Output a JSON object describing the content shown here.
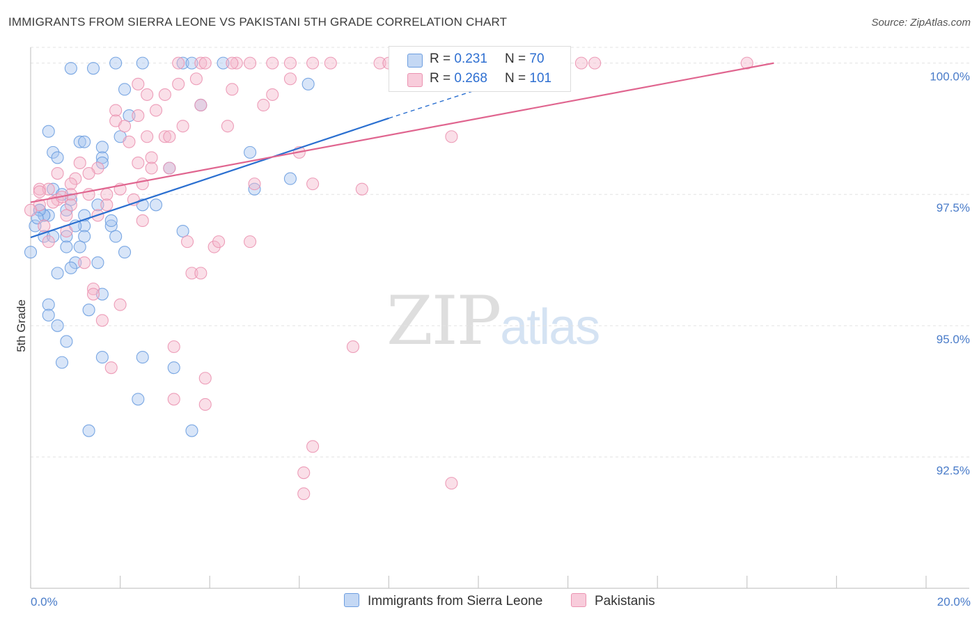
{
  "title": "IMMIGRANTS FROM SIERRA LEONE VS PAKISTANI 5TH GRADE CORRELATION CHART",
  "source": "Source: ZipAtlas.com",
  "watermark": {
    "zip": "ZIP",
    "atlas": "atlas"
  },
  "colors": {
    "blue_fill": "#a9c6ef",
    "blue_stroke": "#6d9ee0",
    "blue_line": "#2a6fd0",
    "pink_fill": "#f5b8cc",
    "pink_stroke": "#eb93b1",
    "pink_line": "#e0658f",
    "grid": "#e3e3e3",
    "tick_label": "#4a7cc9"
  },
  "legend": {
    "rows": [
      {
        "r_label": "R = ",
        "r_value": "0.231",
        "n_label": "N = ",
        "n_value": "70"
      },
      {
        "r_label": "R = ",
        "r_value": "0.268",
        "n_label": "N = ",
        "n_value": "101"
      }
    ]
  },
  "bottom_legend": [
    "Immigrants from Sierra Leone",
    "Pakistanis"
  ],
  "chart_data": {
    "type": "scatter",
    "title": "IMMIGRANTS FROM SIERRA LEONE VS PAKISTANI 5TH GRADE CORRELATION CHART",
    "xlabel": "",
    "ylabel": "5th Grade",
    "xlim": [
      0,
      20
    ],
    "ylim": [
      90.0,
      100.3
    ],
    "x_tick_labels": [
      "0.0%",
      "20.0%"
    ],
    "y_ticks": [
      92.5,
      95.0,
      97.5,
      100.0
    ],
    "y_tick_labels": [
      "92.5%",
      "95.0%",
      "97.5%",
      "100.0%"
    ],
    "grid": true,
    "legend_position": "top-center",
    "series": [
      {
        "name": "Immigrants from Sierra Leone",
        "color": "#a9c6ef",
        "r": 0.231,
        "n": 70,
        "trend": {
          "x0": 0.0,
          "y0": 96.68,
          "x1": 8.0,
          "y1": 98.95,
          "dash_to_x": 10.0,
          "dash_to_y": 99.5
        },
        "points": [
          [
            0.9,
            99.9
          ],
          [
            1.4,
            99.9
          ],
          [
            1.9,
            100.0
          ],
          [
            2.5,
            100.0
          ],
          [
            3.4,
            100.0
          ],
          [
            3.6,
            100.0
          ],
          [
            4.3,
            100.0
          ],
          [
            6.2,
            99.6
          ],
          [
            2.1,
            99.5
          ],
          [
            3.8,
            99.2
          ],
          [
            2.2,
            99.0
          ],
          [
            0.4,
            98.7
          ],
          [
            1.1,
            98.5
          ],
          [
            1.2,
            98.5
          ],
          [
            1.6,
            98.4
          ],
          [
            2.0,
            98.6
          ],
          [
            0.5,
            98.3
          ],
          [
            0.6,
            98.2
          ],
          [
            1.6,
            98.2
          ],
          [
            1.6,
            98.1
          ],
          [
            3.1,
            98.0
          ],
          [
            4.9,
            98.3
          ],
          [
            5.8,
            97.8
          ],
          [
            0.5,
            97.6
          ],
          [
            0.9,
            97.4
          ],
          [
            1.5,
            97.3
          ],
          [
            2.5,
            97.3
          ],
          [
            0.2,
            97.2
          ],
          [
            0.3,
            97.1
          ],
          [
            0.4,
            97.1
          ],
          [
            0.8,
            97.2
          ],
          [
            1.2,
            97.1
          ],
          [
            0.1,
            96.9
          ],
          [
            1.2,
            96.9
          ],
          [
            1.8,
            96.9
          ],
          [
            1.9,
            96.7
          ],
          [
            3.4,
            96.8
          ],
          [
            0.3,
            96.7
          ],
          [
            0.5,
            96.7
          ],
          [
            0.8,
            96.7
          ],
          [
            1.2,
            96.7
          ],
          [
            0.8,
            96.5
          ],
          [
            1.1,
            96.5
          ],
          [
            2.1,
            96.4
          ],
          [
            0.0,
            96.4
          ],
          [
            1.0,
            96.2
          ],
          [
            1.5,
            96.2
          ],
          [
            0.9,
            96.1
          ],
          [
            0.6,
            96.0
          ],
          [
            1.6,
            95.6
          ],
          [
            0.4,
            95.4
          ],
          [
            1.3,
            95.3
          ],
          [
            0.4,
            95.2
          ],
          [
            0.6,
            95.0
          ],
          [
            0.8,
            94.7
          ],
          [
            1.6,
            94.4
          ],
          [
            2.5,
            94.4
          ],
          [
            0.7,
            94.3
          ],
          [
            3.2,
            94.2
          ],
          [
            2.4,
            93.6
          ],
          [
            1.3,
            93.0
          ],
          [
            3.6,
            93.0
          ],
          [
            0.3,
            97.1
          ],
          [
            0.2,
            97.2
          ],
          [
            0.15,
            97.05
          ],
          [
            1.0,
            96.9
          ],
          [
            1.8,
            97.0
          ],
          [
            0.7,
            97.5
          ],
          [
            2.8,
            97.3
          ],
          [
            5.0,
            97.6
          ]
        ]
      },
      {
        "name": "Pakistanis",
        "color": "#f5b8cc",
        "r": 0.268,
        "n": 101,
        "trend": {
          "x0": 0.0,
          "y0": 97.35,
          "x1": 16.6,
          "y1": 100.0
        },
        "points": [
          [
            3.8,
            100.0
          ],
          [
            4.6,
            100.0
          ],
          [
            4.9,
            100.0
          ],
          [
            5.4,
            100.0
          ],
          [
            5.8,
            100.0
          ],
          [
            6.3,
            100.0
          ],
          [
            6.7,
            100.0
          ],
          [
            7.8,
            100.0
          ],
          [
            8.0,
            100.0
          ],
          [
            8.2,
            100.0
          ],
          [
            9.2,
            100.0
          ],
          [
            9.4,
            100.0
          ],
          [
            12.3,
            100.0
          ],
          [
            12.6,
            100.0
          ],
          [
            3.3,
            100.0
          ],
          [
            3.9,
            100.0
          ],
          [
            4.5,
            100.0
          ],
          [
            8.6,
            100.0
          ],
          [
            8.8,
            100.0
          ],
          [
            11.5,
            100.0
          ],
          [
            11.9,
            100.0
          ],
          [
            16.0,
            100.0
          ],
          [
            2.4,
            99.6
          ],
          [
            3.3,
            99.6
          ],
          [
            3.7,
            99.7
          ],
          [
            5.8,
            99.7
          ],
          [
            2.6,
            99.4
          ],
          [
            3.0,
            99.4
          ],
          [
            4.5,
            99.5
          ],
          [
            5.4,
            99.4
          ],
          [
            3.8,
            99.2
          ],
          [
            5.2,
            99.2
          ],
          [
            1.9,
            99.1
          ],
          [
            2.4,
            99.0
          ],
          [
            2.8,
            99.1
          ],
          [
            1.9,
            98.9
          ],
          [
            2.1,
            98.8
          ],
          [
            4.4,
            98.8
          ],
          [
            3.4,
            98.8
          ],
          [
            2.6,
            98.6
          ],
          [
            3.0,
            98.6
          ],
          [
            3.1,
            98.6
          ],
          [
            9.4,
            98.6
          ],
          [
            2.2,
            98.5
          ],
          [
            6.0,
            98.3
          ],
          [
            1.1,
            98.1
          ],
          [
            2.4,
            98.1
          ],
          [
            2.7,
            98.2
          ],
          [
            1.5,
            98.0
          ],
          [
            2.7,
            98.0
          ],
          [
            3.1,
            98.0
          ],
          [
            0.6,
            97.9
          ],
          [
            1.3,
            97.9
          ],
          [
            1.0,
            97.8
          ],
          [
            0.9,
            97.7
          ],
          [
            2.0,
            97.6
          ],
          [
            2.5,
            97.7
          ],
          [
            5.0,
            97.7
          ],
          [
            6.3,
            97.7
          ],
          [
            7.4,
            97.6
          ],
          [
            0.2,
            97.6
          ],
          [
            0.4,
            97.6
          ],
          [
            0.9,
            97.5
          ],
          [
            1.3,
            97.5
          ],
          [
            1.7,
            97.5
          ],
          [
            0.6,
            97.4
          ],
          [
            0.9,
            97.3
          ],
          [
            0.2,
            97.3
          ],
          [
            0.0,
            97.2
          ],
          [
            1.5,
            97.1
          ],
          [
            0.8,
            97.1
          ],
          [
            2.5,
            97.0
          ],
          [
            0.3,
            96.9
          ],
          [
            0.8,
            96.8
          ],
          [
            3.5,
            96.6
          ],
          [
            4.9,
            96.6
          ],
          [
            4.1,
            96.5
          ],
          [
            4.2,
            96.6
          ],
          [
            0.4,
            96.6
          ],
          [
            1.2,
            96.2
          ],
          [
            3.6,
            96.0
          ],
          [
            3.8,
            96.0
          ],
          [
            1.4,
            95.7
          ],
          [
            1.4,
            95.6
          ],
          [
            2.0,
            95.4
          ],
          [
            1.6,
            95.1
          ],
          [
            3.2,
            94.6
          ],
          [
            7.2,
            94.6
          ],
          [
            1.8,
            94.2
          ],
          [
            3.9,
            94.0
          ],
          [
            3.2,
            93.6
          ],
          [
            3.9,
            93.5
          ],
          [
            6.3,
            92.7
          ],
          [
            6.1,
            92.2
          ],
          [
            6.1,
            91.8
          ],
          [
            9.4,
            92.0
          ],
          [
            0.2,
            97.55
          ],
          [
            0.5,
            97.35
          ],
          [
            0.7,
            97.45
          ],
          [
            1.7,
            97.3
          ],
          [
            2.3,
            97.4
          ]
        ]
      }
    ]
  }
}
